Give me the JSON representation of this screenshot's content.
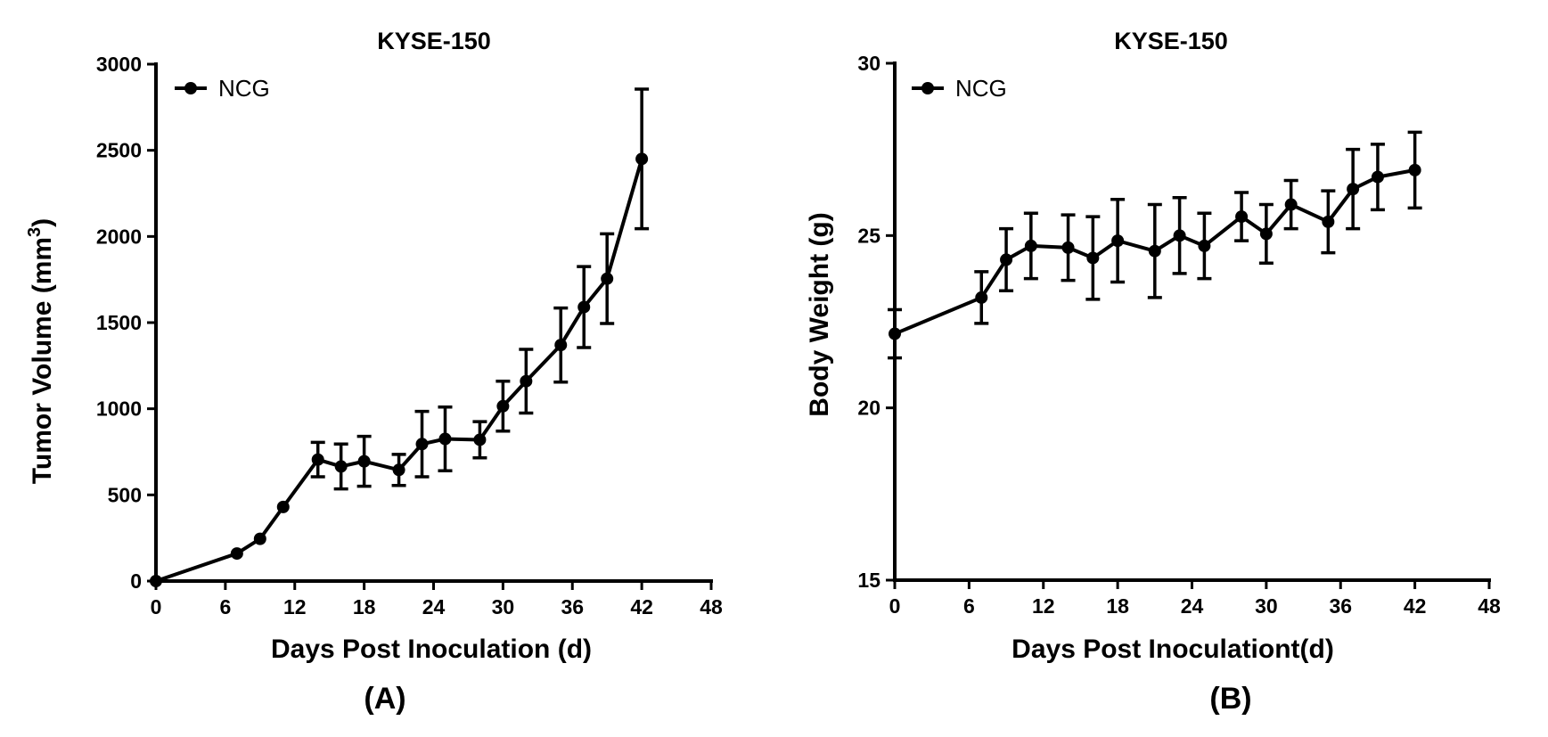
{
  "chart_data": [
    {
      "type": "line",
      "panel_label": "(A)",
      "title": "KYSE-150",
      "xlabel": "Days Post Inoculation (d)",
      "ylabel": "Tumor Volume (mm",
      "ylabel_superscript": "3",
      "ylabel_suffix": ")",
      "xlim": [
        0,
        48
      ],
      "ylim": [
        0,
        3000
      ],
      "xticks": [
        0,
        6,
        12,
        18,
        24,
        30,
        36,
        42,
        48
      ],
      "yticks": [
        0,
        500,
        1000,
        1500,
        2000,
        2500,
        3000
      ],
      "legend_position": "top-left",
      "series": [
        {
          "name": "NCG",
          "color": "#000000",
          "x": [
            0,
            7,
            9,
            11,
            14,
            16,
            18,
            21,
            23,
            25,
            28,
            30,
            32,
            35,
            37,
            39,
            42
          ],
          "y": [
            0,
            160,
            245,
            430,
            705,
            665,
            695,
            645,
            795,
            825,
            820,
            1015,
            1160,
            1370,
            1590,
            1755,
            2450
          ],
          "error": [
            0,
            0,
            0,
            0,
            100,
            130,
            145,
            90,
            190,
            185,
            105,
            145,
            185,
            215,
            235,
            260,
            405
          ]
        }
      ]
    },
    {
      "type": "line",
      "panel_label": "(B)",
      "title": "KYSE-150",
      "xlabel": "Days Post Inoculationt(d)",
      "ylabel": "Body Weight (g)",
      "xlim": [
        0,
        48
      ],
      "ylim": [
        15,
        30
      ],
      "xticks": [
        0,
        6,
        12,
        18,
        24,
        30,
        36,
        42,
        48
      ],
      "yticks": [
        15,
        20,
        25,
        30
      ],
      "legend_position": "top-left",
      "series": [
        {
          "name": "NCG",
          "color": "#000000",
          "x": [
            0,
            7,
            9,
            11,
            14,
            16,
            18,
            21,
            23,
            25,
            28,
            30,
            32,
            35,
            37,
            39,
            42
          ],
          "y": [
            22.15,
            23.2,
            24.3,
            24.7,
            24.65,
            24.35,
            24.85,
            24.55,
            25.0,
            24.7,
            25.55,
            25.05,
            25.9,
            25.4,
            26.35,
            26.7,
            26.9
          ],
          "error": [
            0.7,
            0.75,
            0.9,
            0.95,
            0.95,
            1.2,
            1.2,
            1.35,
            1.1,
            0.95,
            0.7,
            0.85,
            0.7,
            0.9,
            1.15,
            0.95,
            1.1
          ]
        }
      ]
    }
  ]
}
